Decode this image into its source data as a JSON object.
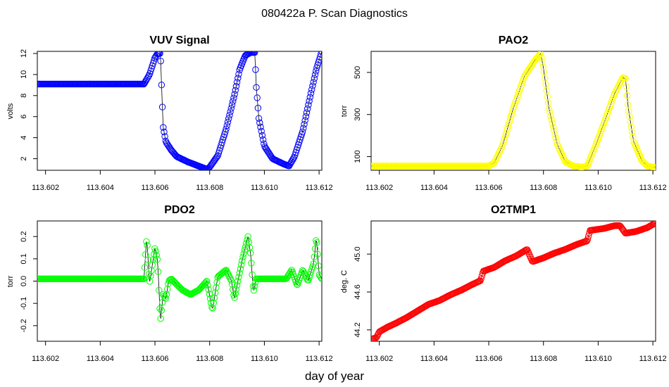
{
  "figure": {
    "title": "080422a   P. Scan Diagnostics",
    "xlabel": "day of year"
  },
  "chart_data": [
    {
      "id": "vuv",
      "type": "scatter",
      "title": "VUV Signal",
      "xlabel": "",
      "ylabel": "volts",
      "color": "#0000ff",
      "xlim": [
        113.6017,
        113.6121
      ],
      "ylim": [
        0.9,
        12.2
      ],
      "xticks": [
        113.602,
        113.604,
        113.606,
        113.608,
        113.61,
        113.612
      ],
      "xtick_labels": [
        "113.602",
        "113.604",
        "113.606",
        "113.608",
        "113.610",
        "113.612"
      ],
      "yticks": [
        2,
        4,
        6,
        8,
        10,
        12
      ],
      "ytick_labels": [
        "2",
        "4",
        "6",
        "8",
        "10",
        "12"
      ],
      "keypoints": [
        [
          113.6017,
          9.1
        ],
        [
          113.6056,
          9.1
        ],
        [
          113.6058,
          10.0
        ],
        [
          113.606,
          11.6
        ],
        [
          113.6061,
          12.0
        ],
        [
          113.6062,
          12.0
        ],
        [
          113.60625,
          8.3
        ],
        [
          113.6063,
          5.0
        ],
        [
          113.6064,
          3.6
        ],
        [
          113.6066,
          2.8
        ],
        [
          113.6068,
          2.2
        ],
        [
          113.6072,
          1.7
        ],
        [
          113.6076,
          1.3
        ],
        [
          113.6079,
          1.0
        ],
        [
          113.608,
          1.2
        ],
        [
          113.6083,
          2.3
        ],
        [
          113.6086,
          4.8
        ],
        [
          113.6089,
          8.0
        ],
        [
          113.6091,
          10.5
        ],
        [
          113.6093,
          11.8
        ],
        [
          113.6095,
          12.1
        ],
        [
          113.60965,
          12.1
        ],
        [
          113.6097,
          9.0
        ],
        [
          113.6098,
          5.8
        ],
        [
          113.61,
          3.2
        ],
        [
          113.6103,
          2.0
        ],
        [
          113.6107,
          1.5
        ],
        [
          113.6109,
          1.3
        ],
        [
          113.6111,
          2.2
        ],
        [
          113.6114,
          4.6
        ],
        [
          113.6117,
          8.2
        ],
        [
          113.6119,
          10.5
        ],
        [
          113.6121,
          12.2
        ]
      ]
    },
    {
      "id": "pao2",
      "type": "scatter",
      "title": "PAO2",
      "xlabel": "",
      "ylabel": "torr",
      "color": "#ffff00",
      "xlim": [
        113.6017,
        113.6121
      ],
      "ylim": [
        35,
        600
      ],
      "xticks": [
        113.602,
        113.604,
        113.606,
        113.608,
        113.61,
        113.612
      ],
      "xtick_labels": [
        "113.602",
        "113.604",
        "113.606",
        "113.608",
        "113.610",
        "113.612"
      ],
      "yticks": [
        100,
        300,
        500
      ],
      "ytick_labels": [
        "100",
        "300",
        "500"
      ],
      "keypoints": [
        [
          113.6017,
          55
        ],
        [
          113.606,
          55
        ],
        [
          113.6062,
          70
        ],
        [
          113.6065,
          150
        ],
        [
          113.6069,
          330
        ],
        [
          113.6073,
          480
        ],
        [
          113.6077,
          560
        ],
        [
          113.6079,
          590
        ],
        [
          113.608,
          520
        ],
        [
          113.6082,
          330
        ],
        [
          113.6085,
          160
        ],
        [
          113.6088,
          75
        ],
        [
          113.6091,
          55
        ],
        [
          113.6094,
          50
        ],
        [
          113.6096,
          55
        ],
        [
          113.6099,
          150
        ],
        [
          113.6103,
          290
        ],
        [
          113.6106,
          400
        ],
        [
          113.6109,
          475
        ],
        [
          113.611,
          470
        ],
        [
          113.6111,
          330
        ],
        [
          113.6113,
          170
        ],
        [
          113.6116,
          80
        ],
        [
          113.6118,
          55
        ],
        [
          113.6121,
          48
        ]
      ]
    },
    {
      "id": "pdo2",
      "type": "scatter",
      "title": "PDO2",
      "xlabel": "",
      "ylabel": "torr",
      "color": "#00ff00",
      "xlim": [
        113.6017,
        113.6121
      ],
      "ylim": [
        -0.27,
        0.27
      ],
      "xticks": [
        113.602,
        113.604,
        113.606,
        113.608,
        113.61,
        113.612
      ],
      "xtick_labels": [
        "113.602",
        "113.604",
        "113.606",
        "113.608",
        "113.610",
        "113.612"
      ],
      "yticks": [
        -0.2,
        -0.1,
        0.0,
        0.1,
        0.2
      ],
      "ytick_labels": [
        "-0.2",
        "-0.1",
        "0.0",
        "0.1",
        "0.2"
      ],
      "keypoints": [
        [
          113.6017,
          0.01
        ],
        [
          113.6056,
          0.01
        ],
        [
          113.6057,
          0.2
        ],
        [
          113.6058,
          -0.01
        ],
        [
          113.606,
          0.15
        ],
        [
          113.6061,
          0.09
        ],
        [
          113.6062,
          -0.18
        ],
        [
          113.6063,
          -0.06
        ],
        [
          113.6064,
          -0.08
        ],
        [
          113.6065,
          0.0
        ],
        [
          113.6066,
          0.01
        ],
        [
          113.607,
          -0.04
        ],
        [
          113.6073,
          -0.06
        ],
        [
          113.6076,
          -0.04
        ],
        [
          113.6079,
          0.0
        ],
        [
          113.6081,
          -0.13
        ],
        [
          113.6083,
          0.02
        ],
        [
          113.6086,
          0.05
        ],
        [
          113.6088,
          0.0
        ],
        [
          113.6089,
          -0.08
        ],
        [
          113.6092,
          0.1
        ],
        [
          113.6094,
          0.2
        ],
        [
          113.6095,
          0.12
        ],
        [
          113.6096,
          -0.05
        ],
        [
          113.6097,
          0.01
        ],
        [
          113.6108,
          0.01
        ],
        [
          113.611,
          0.05
        ],
        [
          113.6112,
          -0.02
        ],
        [
          113.6114,
          0.05
        ],
        [
          113.6116,
          0.0
        ],
        [
          113.6118,
          0.08
        ],
        [
          113.6119,
          0.2
        ],
        [
          113.612,
          0.03
        ],
        [
          113.6121,
          0.01
        ]
      ]
    },
    {
      "id": "o2tmp1",
      "type": "scatter",
      "title": "O2TMP1",
      "xlabel": "",
      "ylabel": "deg. C",
      "color": "#ff0000",
      "xlim": [
        113.6017,
        113.6121
      ],
      "ylim": [
        44.08,
        45.35
      ],
      "xticks": [
        113.602,
        113.604,
        113.606,
        113.608,
        113.61,
        113.612
      ],
      "xtick_labels": [
        "113.602",
        "113.604",
        "113.606",
        "113.608",
        "113.610",
        "113.612"
      ],
      "yticks": [
        44.2,
        44.6,
        45.0
      ],
      "ytick_labels": [
        "44.2",
        "44.6",
        "45.0"
      ],
      "keypoints": [
        [
          113.6017,
          44.1
        ],
        [
          113.6019,
          44.12
        ],
        [
          113.602,
          44.18
        ],
        [
          113.6023,
          44.23
        ],
        [
          113.6026,
          44.27
        ],
        [
          113.603,
          44.33
        ],
        [
          113.6034,
          44.4
        ],
        [
          113.6038,
          44.47
        ],
        [
          113.6042,
          44.51
        ],
        [
          113.6046,
          44.57
        ],
        [
          113.605,
          44.62
        ],
        [
          113.6054,
          44.68
        ],
        [
          113.6057,
          44.72
        ],
        [
          113.6058,
          44.82
        ],
        [
          113.6062,
          44.86
        ],
        [
          113.6066,
          44.93
        ],
        [
          113.607,
          44.98
        ],
        [
          113.6074,
          45.05
        ],
        [
          113.6076,
          44.92
        ],
        [
          113.608,
          44.96
        ],
        [
          113.6084,
          45.01
        ],
        [
          113.6088,
          45.05
        ],
        [
          113.6092,
          45.1
        ],
        [
          113.6096,
          45.14
        ],
        [
          113.6097,
          45.25
        ],
        [
          113.6102,
          45.27
        ],
        [
          113.6106,
          45.3
        ],
        [
          113.6108,
          45.3
        ],
        [
          113.611,
          45.22
        ],
        [
          113.6114,
          45.24
        ],
        [
          113.6118,
          45.28
        ],
        [
          113.6121,
          45.33
        ]
      ]
    }
  ]
}
